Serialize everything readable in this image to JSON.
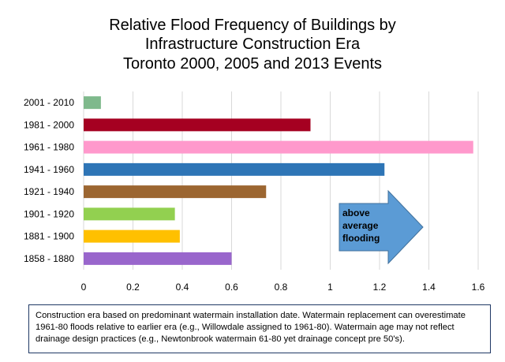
{
  "chart_data": {
    "type": "bar",
    "orientation": "horizontal",
    "title": [
      "Relative Flood Frequency of Buildings by",
      "Infrastructure Construction Era",
      "Toronto 2000, 2005 and 2013 Events"
    ],
    "categories": [
      "2001 - 2010",
      "1981 - 2000",
      "1961 - 1980",
      "1941 - 1960",
      "1921 - 1940",
      "1901 - 1920",
      "1881 - 1900",
      "1858 - 1880"
    ],
    "values": [
      0.07,
      0.92,
      1.58,
      1.22,
      0.74,
      0.37,
      0.39,
      0.6
    ],
    "colors": [
      "#7fb98c",
      "#a50021",
      "#ff99cc",
      "#2e75b6",
      "#9c6631",
      "#92d050",
      "#ffc000",
      "#9966cc"
    ],
    "xlim": [
      0,
      1.6
    ],
    "xticks": [
      "0",
      "0.2",
      "0.4",
      "0.6",
      "0.8",
      "1",
      "1.2",
      "1.4",
      "1.6"
    ],
    "xlabel": "",
    "ylabel": "",
    "grid": true,
    "annotation": {
      "lines": [
        "above",
        "average",
        "flooding"
      ],
      "color": "#5b9bd5"
    }
  },
  "note": {
    "text": "Construction era based on predominant watermain installation date. Watermain replacement can overestimate 1961-80 floods relative to earlier era (e.g., Willowdale assigned to 1961-80). Watermain age may not reflect drainage design practices (e.g., Newtonbrook watermain 61-80 yet drainage concept pre 50's)."
  }
}
